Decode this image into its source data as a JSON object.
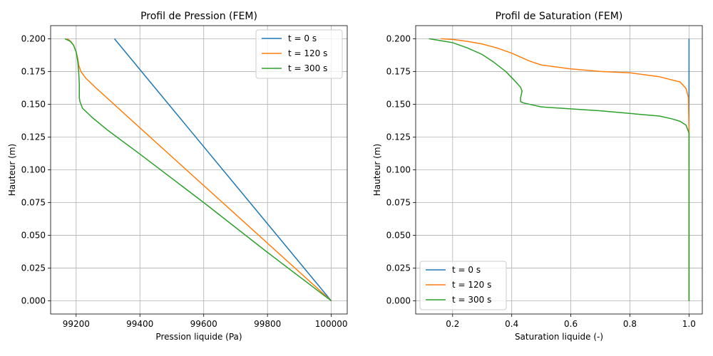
{
  "chart_data": [
    {
      "type": "line",
      "title": "Profil de Pression (FEM)",
      "xlabel": "Pression liquide (Pa)",
      "ylabel": "Hauteur (m)",
      "xlim": [
        99120,
        100050
      ],
      "ylim": [
        -0.01,
        0.21
      ],
      "xticks": [
        99200,
        99400,
        99600,
        99800,
        100000
      ],
      "yticks": [
        0.0,
        0.025,
        0.05,
        0.075,
        0.1,
        0.125,
        0.15,
        0.175,
        0.2
      ],
      "xtick_labels": [
        "99200",
        "99400",
        "99600",
        "99800",
        "100000"
      ],
      "ytick_labels": [
        "0.000",
        "0.025",
        "0.050",
        "0.075",
        "0.100",
        "0.125",
        "0.150",
        "0.175",
        "0.200"
      ],
      "grid": true,
      "legend": "upper-right",
      "series": [
        {
          "name": "t = 0 s",
          "color": "#1f77b4",
          "x": [
            100000,
            99320
          ],
          "y": [
            0.0,
            0.2
          ]
        },
        {
          "name": "t = 120 s",
          "color": "#ff7f0e",
          "x": [
            100000,
            99800,
            99600,
            99400,
            99260,
            99230,
            99215,
            99208,
            99205,
            99200,
            99192,
            99183,
            99172
          ],
          "y": [
            0.0,
            0.044,
            0.088,
            0.132,
            0.163,
            0.17,
            0.175,
            0.18,
            0.185,
            0.19,
            0.195,
            0.198,
            0.2
          ]
        },
        {
          "name": "t = 300 s",
          "color": "#2ca02c",
          "x": [
            100000,
            99800,
            99600,
            99400,
            99300,
            99250,
            99220,
            99212,
            99210,
            99210,
            99210,
            99208,
            99205,
            99200,
            99192,
            99182,
            99165
          ],
          "y": [
            0.0,
            0.037,
            0.075,
            0.112,
            0.13,
            0.14,
            0.147,
            0.152,
            0.155,
            0.16,
            0.165,
            0.175,
            0.183,
            0.19,
            0.195,
            0.198,
            0.2
          ]
        }
      ]
    },
    {
      "type": "line",
      "title": "Profil de Saturation (FEM)",
      "xlabel": "Saturation liquide (-)",
      "ylabel": "Hauteur (m)",
      "xlim": [
        0.075,
        1.045
      ],
      "ylim": [
        -0.01,
        0.21
      ],
      "xticks": [
        0.2,
        0.4,
        0.6,
        0.8,
        1.0
      ],
      "yticks": [
        0.0,
        0.025,
        0.05,
        0.075,
        0.1,
        0.125,
        0.15,
        0.175,
        0.2
      ],
      "xtick_labels": [
        "0.2",
        "0.4",
        "0.6",
        "0.8",
        "1.0"
      ],
      "ytick_labels": [
        "0.000",
        "0.025",
        "0.050",
        "0.075",
        "0.100",
        "0.125",
        "0.150",
        "0.175",
        "0.200"
      ],
      "grid": true,
      "legend": "lower-left",
      "series": [
        {
          "name": "t = 0 s",
          "color": "#1f77b4",
          "x": [
            1.0,
            1.0
          ],
          "y": [
            0.0,
            0.2
          ]
        },
        {
          "name": "t = 120 s",
          "color": "#ff7f0e",
          "x": [
            1.0,
            1.0,
            0.998,
            0.99,
            0.97,
            0.9,
            0.8,
            0.7,
            0.6,
            0.5,
            0.46,
            0.43,
            0.4,
            0.35,
            0.3,
            0.25,
            0.2,
            0.16
          ],
          "y": [
            0.0,
            0.13,
            0.155,
            0.162,
            0.167,
            0.171,
            0.174,
            0.175,
            0.177,
            0.18,
            0.183,
            0.186,
            0.189,
            0.193,
            0.196,
            0.198,
            0.1995,
            0.2
          ]
        },
        {
          "name": "t = 300 s",
          "color": "#2ca02c",
          "x": [
            1.0,
            1.0,
            0.99,
            0.97,
            0.94,
            0.9,
            0.7,
            0.5,
            0.46,
            0.44,
            0.43,
            0.43,
            0.435,
            0.43,
            0.41,
            0.38,
            0.34,
            0.3,
            0.25,
            0.2,
            0.16,
            0.12
          ],
          "y": [
            0.0,
            0.128,
            0.134,
            0.137,
            0.139,
            0.141,
            0.145,
            0.148,
            0.15,
            0.151,
            0.152,
            0.155,
            0.16,
            0.163,
            0.168,
            0.175,
            0.182,
            0.188,
            0.193,
            0.197,
            0.1985,
            0.2
          ]
        }
      ]
    }
  ]
}
